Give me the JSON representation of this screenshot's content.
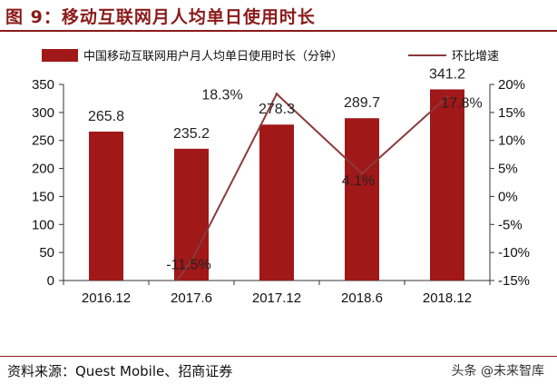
{
  "figure_title": "图 9：移动互联网月人均单日使用时长",
  "source_note": "资料来源：Quest Mobile、招商证券",
  "watermark": "头条 @未来智库",
  "colors": {
    "bar": "#a01818",
    "line": "#8b3a3a",
    "title": "#8b1a1a"
  },
  "chart_data": {
    "type": "bar",
    "categories": [
      "2016.12",
      "2017.6",
      "2017.12",
      "2018.6",
      "2018.12"
    ],
    "series": [
      {
        "name": "中国移动互联网用户月人均单日使用时长（分钟）",
        "type": "bar",
        "axis": "left",
        "values": [
          265.8,
          235.2,
          278.3,
          289.7,
          341.2
        ],
        "labels": [
          "265.8",
          "235.2",
          "278.3",
          "289.7",
          "341.2"
        ]
      },
      {
        "name": "环比增速",
        "type": "line",
        "axis": "right",
        "values": [
          null,
          -11.5,
          18.3,
          4.1,
          17.8
        ],
        "labels": [
          "",
          "-11.5%",
          "18.3%",
          "4.1%",
          "17.8%"
        ]
      }
    ],
    "y_left": {
      "ylim": [
        0,
        350
      ],
      "ticks": [
        0,
        50,
        100,
        150,
        200,
        250,
        300,
        350
      ],
      "tick_labels": [
        "0",
        "50",
        "100",
        "150",
        "200",
        "250",
        "300",
        "350"
      ]
    },
    "y_right": {
      "ylim": [
        -15,
        20
      ],
      "ticks": [
        -15,
        -10,
        -5,
        0,
        5,
        10,
        15,
        20
      ],
      "tick_labels": [
        "-15%",
        "-10%",
        "-5%",
        "0%",
        "5%",
        "10%",
        "15%",
        "20%"
      ]
    },
    "legend_position": "top",
    "grid": false
  }
}
